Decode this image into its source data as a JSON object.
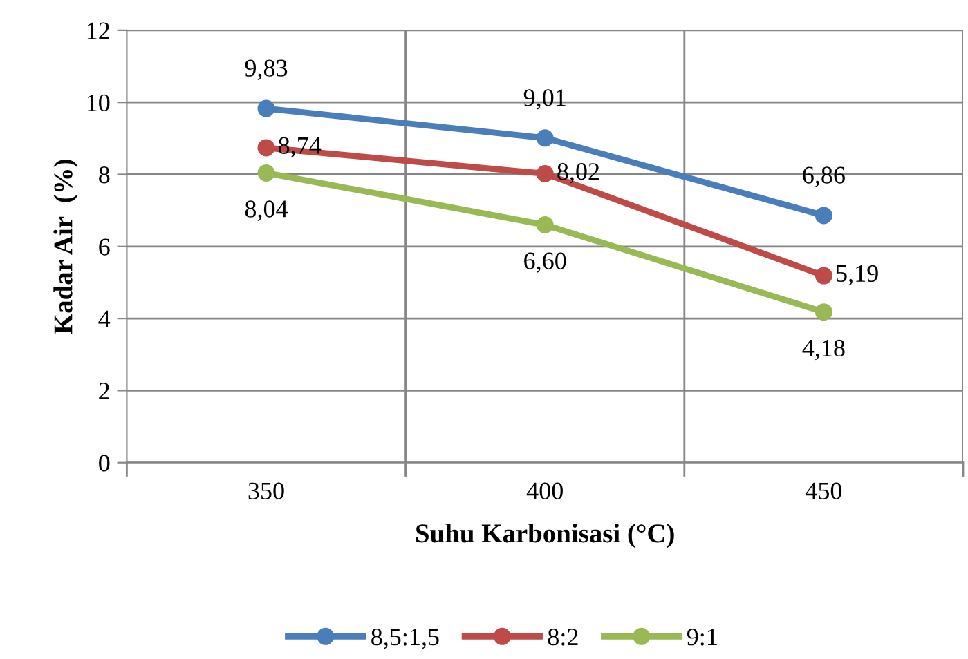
{
  "chart_data": {
    "type": "line",
    "xlabel": "Suhu Karbonisasi (°C)",
    "ylabel": "Kadar Air  (%)",
    "categories": [
      "350",
      "400",
      "450"
    ],
    "ylim": [
      0,
      12
    ],
    "yticks": [
      0,
      2,
      4,
      6,
      8,
      10,
      12
    ],
    "grid": true,
    "legend": "bottom",
    "marker": "circle",
    "line_style": "solid",
    "series": [
      {
        "name": "8,5:1,5",
        "color": "#4a7ebb",
        "values": [
          9.83,
          9.01,
          6.86
        ],
        "value_labels": [
          "9,83",
          "9,01",
          "6,86"
        ]
      },
      {
        "name": "8:2",
        "color": "#be4b48",
        "values": [
          8.74,
          8.02,
          5.19
        ],
        "value_labels": [
          "8,74",
          "8,02",
          "5,19"
        ]
      },
      {
        "name": "9:1",
        "color": "#98b954",
        "values": [
          8.04,
          6.6,
          4.18
        ],
        "value_labels": [
          "8,04",
          "6,60",
          "4,18"
        ]
      }
    ]
  }
}
